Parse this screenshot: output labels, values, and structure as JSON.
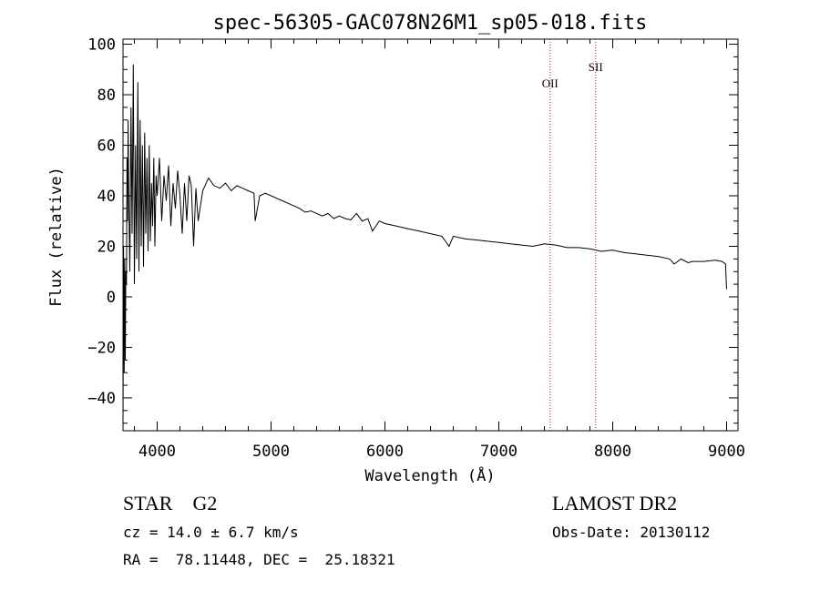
{
  "chart_data": {
    "type": "line",
    "title": "spec-56305-GAC078N26M1_sp05-018.fits",
    "xlabel": "Wavelength (Å)",
    "ylabel": "Flux (relative)",
    "xlim": [
      3700,
      9100
    ],
    "ylim": [
      -53,
      102
    ],
    "x_ticks": [
      4000,
      5000,
      6000,
      7000,
      8000,
      9000
    ],
    "y_ticks": [
      -40,
      -20,
      0,
      20,
      40,
      60,
      80,
      100
    ],
    "grid": false,
    "series": [
      {
        "x": [
          3700,
          3705,
          3710,
          3715,
          3720,
          3725,
          3730,
          3735,
          3740,
          3745,
          3750,
          3760,
          3770,
          3780,
          3790,
          3800,
          3810,
          3820,
          3830,
          3840,
          3850,
          3860,
          3870,
          3880,
          3890,
          3900,
          3910,
          3920,
          3930,
          3940,
          3950,
          3960,
          3970,
          3980,
          3990,
          4000,
          4020,
          4040,
          4060,
          4080,
          4100,
          4120,
          4140,
          4160,
          4180,
          4200,
          4220,
          4240,
          4260,
          4280,
          4300,
          4320,
          4340,
          4360,
          4400,
          4450,
          4500,
          4550,
          4600,
          4650,
          4700,
          4750,
          4800,
          4850,
          4861,
          4900,
          4950,
          5000,
          5050,
          5100,
          5150,
          5200,
          5250,
          5300,
          5350,
          5400,
          5450,
          5500,
          5550,
          5600,
          5650,
          5700,
          5750,
          5800,
          5850,
          5890,
          5950,
          6000,
          6100,
          6200,
          6300,
          6400,
          6500,
          6563,
          6600,
          6700,
          6800,
          6900,
          7000,
          7100,
          7200,
          7300,
          7400,
          7500,
          7600,
          7700,
          7800,
          7900,
          8000,
          8100,
          8200,
          8300,
          8400,
          8500,
          8540,
          8600,
          8662,
          8700,
          8800,
          8900,
          8960,
          8990,
          9000
        ],
        "y": [
          -50,
          20,
          -30,
          15,
          -25,
          10,
          5,
          55,
          30,
          70,
          40,
          10,
          75,
          25,
          92,
          5,
          60,
          15,
          85,
          10,
          70,
          20,
          60,
          12,
          65,
          25,
          55,
          18,
          60,
          22,
          45,
          28,
          55,
          20,
          48,
          40,
          55,
          30,
          48,
          38,
          52,
          28,
          45,
          35,
          50,
          40,
          25,
          45,
          30,
          48,
          44,
          20,
          43,
          30,
          42,
          47,
          44,
          43,
          45,
          42,
          44,
          43,
          42,
          41,
          30,
          40,
          41,
          40,
          39,
          38,
          37,
          36,
          35,
          33.5,
          34,
          33,
          32,
          33,
          31,
          32,
          31,
          30.5,
          33,
          30,
          31,
          26,
          30,
          29,
          28,
          27,
          26,
          25,
          24,
          20,
          24,
          23,
          22.5,
          22,
          21.5,
          21,
          20.5,
          20,
          21,
          20.5,
          19.5,
          19.5,
          19,
          18,
          18.5,
          17.5,
          17,
          16.5,
          16,
          15,
          13,
          15,
          13.5,
          14,
          14,
          14.5,
          14,
          13,
          3
        ]
      }
    ],
    "annotations": [
      {
        "label": "OII",
        "x": 7450
      },
      {
        "label": "SII",
        "x": 7850
      }
    ],
    "info": {
      "class_text": "STAR    G2",
      "survey": "LAMOST DR2",
      "cz": "cz = 14.0 ± 6.7 km/s",
      "obs_date": "Obs-Date: 20130112",
      "radec": "RA =  78.11448, DEC =  25.18321"
    }
  }
}
